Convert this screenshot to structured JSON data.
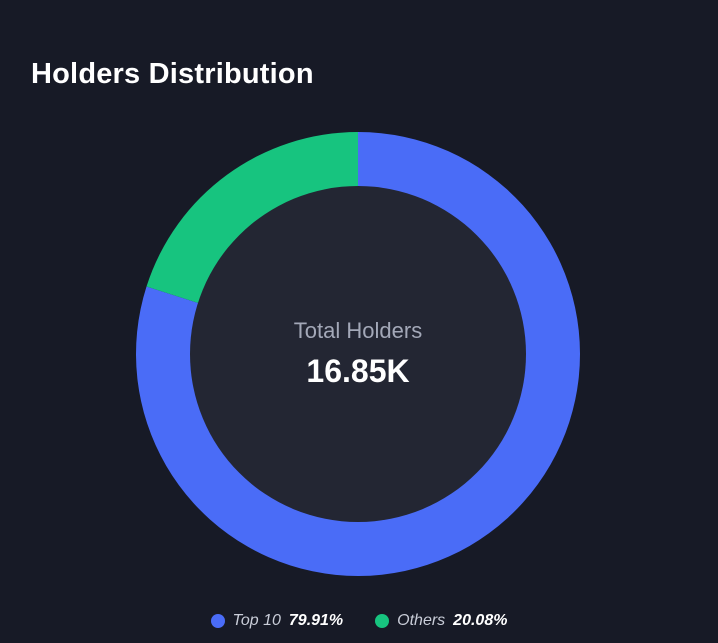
{
  "title": "Holders Distribution",
  "center": {
    "label": "Total Holders",
    "value": "16.85K"
  },
  "colors": {
    "top10": "#4a6cf7",
    "others": "#17c47f",
    "hole": "#232633",
    "background": "#171a26"
  },
  "legend": [
    {
      "name": "Top 10",
      "percent": "79.91%"
    },
    {
      "name": "Others",
      "percent": "20.08%"
    }
  ],
  "chart_data": {
    "type": "pie",
    "title": "Holders Distribution",
    "categories": [
      "Top 10",
      "Others"
    ],
    "values": [
      79.91,
      20.08
    ],
    "legend_position": "bottom"
  }
}
